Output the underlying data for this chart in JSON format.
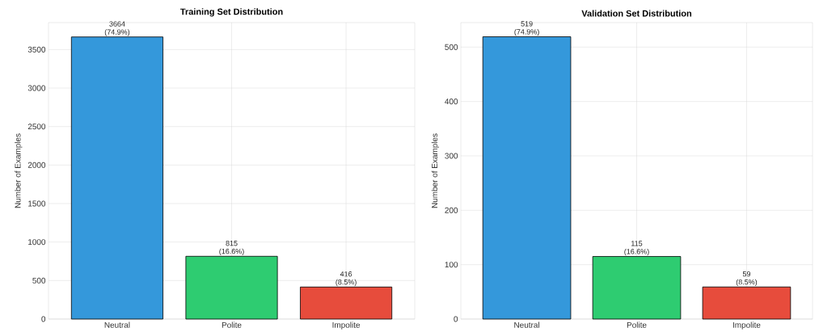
{
  "chart_data": [
    {
      "type": "bar",
      "title": "Training Set Distribution",
      "ylabel": "Number of Examples",
      "categories": [
        "Neutral",
        "Polite",
        "Impolite"
      ],
      "values": [
        3664,
        815,
        416
      ],
      "colors": [
        "#3498db",
        "#2ecc71",
        "#e74c3c"
      ],
      "value_labels": [
        "3664 (74.9%)",
        "815 (16.6%)",
        "416 (8.5%)"
      ],
      "ylim": [
        0,
        3850
      ],
      "yticks": [
        0,
        500,
        1000,
        1500,
        2000,
        2500,
        3000,
        3500
      ],
      "grid": true
    },
    {
      "type": "bar",
      "title": "Validation Set Distribution",
      "ylabel": "Number of Examples",
      "categories": [
        "Neutral",
        "Polite",
        "Impolite"
      ],
      "values": [
        519,
        115,
        59
      ],
      "colors": [
        "#3498db",
        "#2ecc71",
        "#e74c3c"
      ],
      "value_labels": [
        "519 (74.9%)",
        "115 (16.6%)",
        "59 (8.5%)"
      ],
      "ylim": [
        0,
        545
      ],
      "yticks": [
        0,
        100,
        200,
        300,
        400,
        500
      ],
      "grid": true
    }
  ]
}
